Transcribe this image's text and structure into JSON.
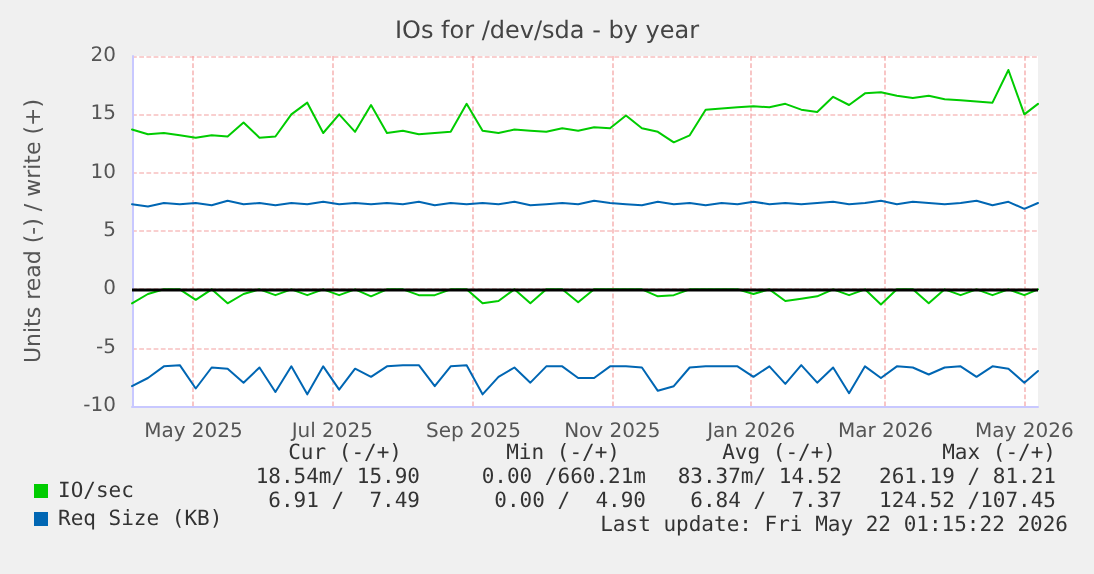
{
  "chart_data": {
    "type": "line",
    "title": "IOs for /dev/sda - by year",
    "ylabel": "Units read (-) / write (+)",
    "x": [
      "2025-04-18",
      "2025-04-25",
      "2025-05-02",
      "2025-05-09",
      "2025-05-16",
      "2025-05-23",
      "2025-05-30",
      "2025-06-06",
      "2025-06-13",
      "2025-06-20",
      "2025-06-27",
      "2025-07-04",
      "2025-07-11",
      "2025-07-18",
      "2025-07-25",
      "2025-08-01",
      "2025-08-08",
      "2025-08-15",
      "2025-08-22",
      "2025-08-29",
      "2025-09-05",
      "2025-09-12",
      "2025-09-19",
      "2025-09-26",
      "2025-10-03",
      "2025-10-10",
      "2025-10-17",
      "2025-10-24",
      "2025-10-31",
      "2025-11-07",
      "2025-11-14",
      "2025-11-21",
      "2025-11-28",
      "2025-12-05",
      "2025-12-12",
      "2025-12-19",
      "2025-12-26",
      "2026-01-02",
      "2026-01-09",
      "2026-01-16",
      "2026-01-23",
      "2026-01-30",
      "2026-02-06",
      "2026-02-13",
      "2026-02-20",
      "2026-02-27",
      "2026-03-06",
      "2026-03-13",
      "2026-03-20",
      "2026-03-27",
      "2026-04-03",
      "2026-04-10",
      "2026-04-17",
      "2026-04-24",
      "2026-05-01",
      "2026-05-08",
      "2026-05-15",
      "2026-05-21"
    ],
    "series": [
      {
        "name": "IO/sec",
        "color": "#00cc00",
        "values": [
          13.7,
          13.3,
          13.4,
          13.2,
          13.0,
          13.2,
          13.1,
          14.3,
          13.0,
          13.1,
          15.0,
          16.0,
          13.4,
          15.0,
          13.5,
          15.8,
          13.4,
          13.6,
          13.3,
          13.4,
          13.5,
          15.9,
          13.6,
          13.4,
          13.7,
          13.6,
          13.5,
          13.8,
          13.6,
          13.9,
          13.8,
          14.9,
          13.8,
          13.5,
          12.6,
          13.2,
          15.4,
          15.5,
          15.6,
          15.7,
          15.6,
          15.9,
          15.4,
          15.2,
          16.5,
          15.8,
          16.8,
          16.9,
          16.6,
          16.4,
          16.6,
          16.3,
          16.2,
          16.1,
          16.0,
          18.8,
          15.0,
          15.9
        ]
      },
      {
        "color": "#00cc00",
        "values": [
          -1.2,
          -0.4,
          0,
          0,
          -0.9,
          0,
          -1.2,
          -0.4,
          0,
          -0.5,
          0,
          -0.5,
          0,
          -0.5,
          0,
          -0.6,
          0,
          0,
          -0.5,
          -0.5,
          0,
          0,
          -1.2,
          -1.0,
          0,
          -1.2,
          0,
          0,
          -1.1,
          0,
          0,
          0,
          0,
          -0.6,
          -0.5,
          0,
          0,
          0,
          0,
          -0.4,
          0,
          -1.0,
          -0.8,
          -0.6,
          0,
          -0.5,
          0,
          -1.3,
          0,
          0,
          -1.2,
          0,
          -0.5,
          0,
          -0.5,
          0,
          -0.5,
          0
        ]
      },
      {
        "name": "Req Size (KB)",
        "color": "#0066b3",
        "values": [
          7.3,
          7.1,
          7.4,
          7.3,
          7.4,
          7.2,
          7.6,
          7.3,
          7.4,
          7.2,
          7.4,
          7.3,
          7.5,
          7.3,
          7.4,
          7.3,
          7.4,
          7.3,
          7.5,
          7.2,
          7.4,
          7.3,
          7.4,
          7.3,
          7.5,
          7.2,
          7.3,
          7.4,
          7.3,
          7.6,
          7.4,
          7.3,
          7.2,
          7.5,
          7.3,
          7.4,
          7.2,
          7.4,
          7.3,
          7.5,
          7.3,
          7.4,
          7.3,
          7.4,
          7.5,
          7.3,
          7.4,
          7.6,
          7.3,
          7.5,
          7.4,
          7.3,
          7.4,
          7.6,
          7.2,
          7.5,
          6.9,
          7.4
        ]
      },
      {
        "color": "#0066b3",
        "values": [
          -8.3,
          -7.6,
          -6.6,
          -6.5,
          -8.5,
          -6.7,
          -6.8,
          -8.0,
          -6.7,
          -8.8,
          -6.6,
          -9.0,
          -6.6,
          -8.6,
          -6.8,
          -7.5,
          -6.6,
          -6.5,
          -6.5,
          -8.3,
          -6.6,
          -6.5,
          -9.0,
          -7.5,
          -6.7,
          -8.0,
          -6.6,
          -6.6,
          -7.6,
          -7.6,
          -6.6,
          -6.6,
          -6.7,
          -8.7,
          -8.3,
          -6.7,
          -6.6,
          -6.6,
          -6.6,
          -7.5,
          -6.6,
          -8.1,
          -6.5,
          -8.0,
          -6.7,
          -8.9,
          -6.6,
          -7.6,
          -6.6,
          -6.7,
          -7.3,
          -6.7,
          -6.6,
          -7.5,
          -6.6,
          -6.8,
          -8.0,
          -7.0
        ]
      }
    ],
    "xlim": [
      "2025-04-18",
      "2026-05-21"
    ],
    "xticks": [
      {
        "value": "2025-05-15",
        "label": "May 2025"
      },
      {
        "value": "2025-07-15",
        "label": "Jul 2025"
      },
      {
        "value": "2025-09-15",
        "label": "Sep 2025"
      },
      {
        "value": "2025-11-15",
        "label": "Nov 2025"
      },
      {
        "value": "2026-01-15",
        "label": "Jan 2026"
      },
      {
        "value": "2026-03-15",
        "label": "Mar 2026"
      },
      {
        "value": "2026-05-15",
        "label": "May 2026"
      }
    ],
    "ylim": [
      -10,
      20
    ],
    "yticks": [
      -10,
      -5,
      0,
      5,
      10,
      15,
      20
    ],
    "ref_lines": [
      {
        "axis": "y",
        "value": 0,
        "color": "#000000"
      }
    ],
    "grid": true,
    "legend": "bottom left",
    "marker": "none",
    "line_style": "solid",
    "annotations": [
      "Cur (-/+)",
      "Min (-/+)",
      "Avg (-/+)",
      "Max (-/+)",
      "18.54m/ 15.90",
      "0.00 /660.21m",
      "83.37m/ 14.52",
      "261.19 / 81.21",
      "6.91 /  7.49",
      "0.00 /  4.90",
      "6.84 /  7.37",
      "124.52 /107.45",
      "Last update: Fri May 22 01:15:22 2026"
    ]
  }
}
